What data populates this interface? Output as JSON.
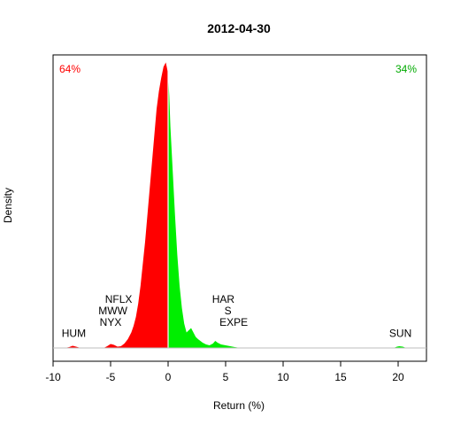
{
  "chart_data": {
    "type": "area",
    "title": "2012-04-30",
    "xlabel": "Return (%)",
    "ylabel": "Density",
    "xlim": [
      -10,
      22.5
    ],
    "ylim": [
      0,
      0.7
    ],
    "xticks": [
      "-10",
      "-5",
      "0",
      "5",
      "10",
      "15",
      "20"
    ],
    "colors": {
      "negative": "#ff0000",
      "positive": "#00ee00",
      "baseline": "#bebebe"
    },
    "share_labels": {
      "negative": "64%",
      "positive": "34%"
    },
    "density": [
      [
        -9.0,
        0.0
      ],
      [
        -8.6,
        0.002
      ],
      [
        -8.3,
        0.005
      ],
      [
        -8.0,
        0.003
      ],
      [
        -7.6,
        0.0
      ],
      [
        -5.6,
        0.0
      ],
      [
        -5.3,
        0.004
      ],
      [
        -5.0,
        0.009
      ],
      [
        -4.7,
        0.007
      ],
      [
        -4.4,
        0.003
      ],
      [
        -4.1,
        0.004
      ],
      [
        -3.8,
        0.01
      ],
      [
        -3.5,
        0.02
      ],
      [
        -3.2,
        0.035
      ],
      [
        -3.0,
        0.05
      ],
      [
        -2.8,
        0.07
      ],
      [
        -2.6,
        0.1
      ],
      [
        -2.4,
        0.14
      ],
      [
        -2.2,
        0.19
      ],
      [
        -2.0,
        0.24
      ],
      [
        -1.8,
        0.3
      ],
      [
        -1.6,
        0.36
      ],
      [
        -1.4,
        0.42
      ],
      [
        -1.2,
        0.48
      ],
      [
        -1.0,
        0.54
      ],
      [
        -0.8,
        0.58
      ],
      [
        -0.6,
        0.61
      ],
      [
        -0.4,
        0.635
      ],
      [
        -0.2,
        0.645
      ],
      [
        0.0,
        0.62
      ],
      [
        0.1,
        0.57
      ],
      [
        0.2,
        0.5
      ],
      [
        0.4,
        0.4
      ],
      [
        0.6,
        0.3
      ],
      [
        0.8,
        0.21
      ],
      [
        1.0,
        0.14
      ],
      [
        1.2,
        0.09
      ],
      [
        1.4,
        0.055
      ],
      [
        1.6,
        0.035
      ],
      [
        1.8,
        0.04
      ],
      [
        2.0,
        0.045
      ],
      [
        2.2,
        0.035
      ],
      [
        2.4,
        0.025
      ],
      [
        2.6,
        0.02
      ],
      [
        2.8,
        0.016
      ],
      [
        3.0,
        0.012
      ],
      [
        3.3,
        0.008
      ],
      [
        3.6,
        0.006
      ],
      [
        3.9,
        0.01
      ],
      [
        4.1,
        0.016
      ],
      [
        4.3,
        0.012
      ],
      [
        4.6,
        0.008
      ],
      [
        5.0,
        0.006
      ],
      [
        5.4,
        0.004
      ],
      [
        5.8,
        0.002
      ],
      [
        6.3,
        0.0
      ],
      [
        19.6,
        0.0
      ],
      [
        19.9,
        0.003
      ],
      [
        20.1,
        0.004
      ],
      [
        20.4,
        0.003
      ],
      [
        20.7,
        0.0
      ]
    ],
    "annotations": [
      {
        "text": "HUM",
        "x": -8.2,
        "y": 0.025
      },
      {
        "text": "NFLX",
        "x": -4.3,
        "y": 0.102
      },
      {
        "text": "MWW",
        "x": -4.8,
        "y": 0.076
      },
      {
        "text": "NYX",
        "x": -5.0,
        "y": 0.05
      },
      {
        "text": "HAR",
        "x": 4.8,
        "y": 0.102
      },
      {
        "text": "S",
        "x": 5.2,
        "y": 0.076
      },
      {
        "text": "EXPE",
        "x": 5.7,
        "y": 0.05
      },
      {
        "text": "SUN",
        "x": 20.2,
        "y": 0.025
      }
    ]
  }
}
